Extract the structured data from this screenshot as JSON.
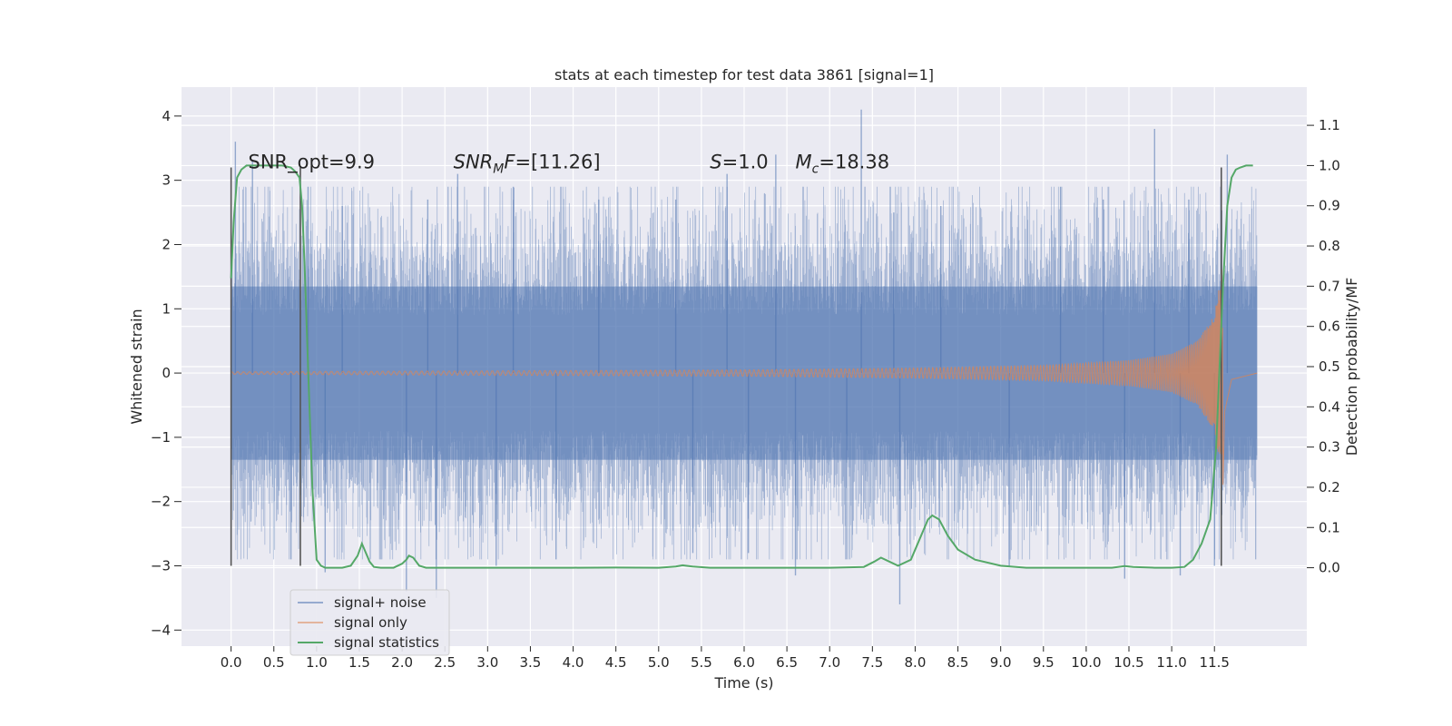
{
  "chart_data": {
    "type": "line",
    "title": "stats at each timestep for test data 3861 [signal=1]",
    "xlabel": "Time (s)",
    "ylabel": "Whitened strain",
    "y2label": "Detection probability/MF",
    "xlim": [
      -0.58,
      12.58
    ],
    "ylim": [
      -4.25,
      4.45
    ],
    "y2lim": [
      -0.195,
      1.195
    ],
    "x_ticks": [
      0.0,
      0.5,
      1.0,
      1.5,
      2.0,
      2.5,
      3.0,
      3.5,
      4.0,
      4.5,
      5.0,
      5.5,
      6.0,
      6.5,
      7.0,
      7.5,
      8.0,
      8.5,
      9.0,
      9.5,
      10.0,
      10.5,
      11.0,
      11.5
    ],
    "x_tick_labels": [
      "0.0",
      "0.5",
      "1.0",
      "1.5",
      "2.0",
      "2.5",
      "3.0",
      "3.5",
      "4.0",
      "4.5",
      "5.0",
      "5.5",
      "6.0",
      "6.5",
      "7.0",
      "7.5",
      "8.0",
      "8.5",
      "9.0",
      "9.5",
      "10.0",
      "10.5",
      "11.0",
      "11.5"
    ],
    "y_ticks": [
      -4,
      -3,
      -2,
      -1,
      0,
      1,
      2,
      3,
      4
    ],
    "y_tick_labels": [
      "−4",
      "−3",
      "−2",
      "−1",
      "0",
      "1",
      "2",
      "3",
      "4"
    ],
    "y2_ticks": [
      0.0,
      0.1,
      0.2,
      0.3,
      0.4,
      0.5,
      0.6,
      0.7,
      0.8,
      0.9,
      1.0,
      1.1
    ],
    "y2_tick_labels": [
      "0.0",
      "0.1",
      "0.2",
      "0.3",
      "0.4",
      "0.5",
      "0.6",
      "0.7",
      "0.8",
      "0.9",
      "1.0",
      "1.1"
    ],
    "grid": true,
    "legend_position": "lower-left",
    "annotations": [
      {
        "text": "SNR_opt=9.9",
        "x": 0.2,
        "y": 3.3
      },
      {
        "text": "SNR_MF=[11.26]",
        "x": 2.6,
        "y": 3.3
      },
      {
        "text": "S=1.0",
        "x": 5.6,
        "y": 3.3
      },
      {
        "text": "M_c=18.38",
        "x": 6.6,
        "y": 3.3
      }
    ],
    "series": [
      {
        "name": "signal+ noise",
        "color": "#4c72b0",
        "axis": "left",
        "kind": "noise",
        "x_range": [
          0.0,
          12.0
        ],
        "sample_rate": 512,
        "core_amplitude": 1.35,
        "spikes": [
          {
            "x": 0.05,
            "y": 3.6
          },
          {
            "x": 0.25,
            "y": 3.3
          },
          {
            "x": 0.9,
            "y": 2.9
          },
          {
            "x": 1.3,
            "y": 2.6
          },
          {
            "x": 2.3,
            "y": 2.7
          },
          {
            "x": 2.65,
            "y": 3.1
          },
          {
            "x": 3.3,
            "y": 2.9
          },
          {
            "x": 4.3,
            "y": 2.7
          },
          {
            "x": 5.2,
            "y": 2.7
          },
          {
            "x": 5.8,
            "y": 3.1
          },
          {
            "x": 6.37,
            "y": 3.4
          },
          {
            "x": 7.37,
            "y": 4.1
          },
          {
            "x": 7.75,
            "y": 2.5
          },
          {
            "x": 8.3,
            "y": 2.6
          },
          {
            "x": 9.7,
            "y": 2.9
          },
          {
            "x": 10.2,
            "y": 2.7
          },
          {
            "x": 10.8,
            "y": 3.8
          },
          {
            "x": 11.2,
            "y": 2.7
          },
          {
            "x": 11.65,
            "y": 3.4
          },
          {
            "x": 0.7,
            "y": -2.9
          },
          {
            "x": 1.1,
            "y": -3.1
          },
          {
            "x": 2.05,
            "y": -3.4
          },
          {
            "x": 2.4,
            "y": -3.5
          },
          {
            "x": 3.1,
            "y": -3.0
          },
          {
            "x": 3.8,
            "y": -2.9
          },
          {
            "x": 5.4,
            "y": -2.8
          },
          {
            "x": 6.05,
            "y": -2.8
          },
          {
            "x": 6.6,
            "y": -3.15
          },
          {
            "x": 7.2,
            "y": -2.9
          },
          {
            "x": 7.82,
            "y": -3.6
          },
          {
            "x": 9.1,
            "y": -3.0
          },
          {
            "x": 10.45,
            "y": -3.2
          },
          {
            "x": 11.1,
            "y": -3.15
          },
          {
            "x": 11.5,
            "y": -3.0
          }
        ]
      },
      {
        "name": "signal only",
        "color": "#dd8452",
        "axis": "left",
        "kind": "chirp",
        "x_range": [
          0.0,
          12.0
        ],
        "merger_time": 11.6,
        "peak_amplitude": 1.75,
        "envelope": [
          [
            0.0,
            0.02
          ],
          [
            6.0,
            0.05
          ],
          [
            8.0,
            0.08
          ],
          [
            9.5,
            0.12
          ],
          [
            10.5,
            0.2
          ],
          [
            11.0,
            0.3
          ],
          [
            11.3,
            0.5
          ],
          [
            11.5,
            0.9
          ],
          [
            11.6,
            1.75
          ],
          [
            11.62,
            0.6
          ],
          [
            11.7,
            0.1
          ],
          [
            12.0,
            0.0
          ]
        ]
      },
      {
        "name": "signal statistics",
        "color": "#55a868",
        "axis": "right",
        "kind": "line",
        "x": [
          0.0,
          0.03,
          0.07,
          0.12,
          0.18,
          0.25,
          0.35,
          0.5,
          0.6,
          0.7,
          0.75,
          0.8,
          0.83,
          0.86,
          0.9,
          0.95,
          1.0,
          1.05,
          1.1,
          1.3,
          1.4,
          1.48,
          1.53,
          1.57,
          1.62,
          1.67,
          1.75,
          1.9,
          2.0,
          2.05,
          2.08,
          2.13,
          2.2,
          2.28,
          2.4,
          3.0,
          4.0,
          4.5,
          5.0,
          5.2,
          5.28,
          5.4,
          5.6,
          6.0,
          7.0,
          7.4,
          7.52,
          7.6,
          7.7,
          7.8,
          7.95,
          8.05,
          8.15,
          8.2,
          8.28,
          8.38,
          8.5,
          8.7,
          9.0,
          9.3,
          9.6,
          10.0,
          10.3,
          10.45,
          10.55,
          10.8,
          11.0,
          11.15,
          11.25,
          11.35,
          11.45,
          11.52,
          11.57,
          11.6,
          11.65,
          11.7,
          11.75,
          11.8,
          11.87,
          11.95
        ],
        "values": [
          0.72,
          0.86,
          0.97,
          0.99,
          1.0,
          1.0,
          1.0,
          1.0,
          1.0,
          0.995,
          0.985,
          0.97,
          0.9,
          0.75,
          0.5,
          0.2,
          0.02,
          0.005,
          0.0,
          0.0,
          0.005,
          0.03,
          0.06,
          0.04,
          0.015,
          0.002,
          0.0,
          0.0,
          0.01,
          0.02,
          0.03,
          0.025,
          0.005,
          0.0,
          0.0,
          0.0,
          0.0,
          0.0005,
          0.0,
          0.003,
          0.006,
          0.003,
          0.0,
          0.0,
          0.0,
          0.002,
          0.015,
          0.025,
          0.015,
          0.005,
          0.02,
          0.07,
          0.12,
          0.13,
          0.12,
          0.08,
          0.045,
          0.02,
          0.005,
          0.0,
          0.0,
          0.0,
          0.0,
          0.004,
          0.002,
          0.0,
          0.0,
          0.002,
          0.02,
          0.06,
          0.12,
          0.3,
          0.55,
          0.7,
          0.9,
          0.97,
          0.99,
          0.995,
          1.0,
          1.0
        ]
      }
    ],
    "vertical_markers": [
      {
        "x": 0.0,
        "y_from": -3.0,
        "y_to": 3.2,
        "color": "#555555"
      },
      {
        "x": 0.81,
        "y_from": -3.0,
        "y_to": 3.2,
        "color": "#555555"
      },
      {
        "x": 11.58,
        "y_from": -3.0,
        "y_to": 3.2,
        "color": "#555555"
      }
    ]
  }
}
